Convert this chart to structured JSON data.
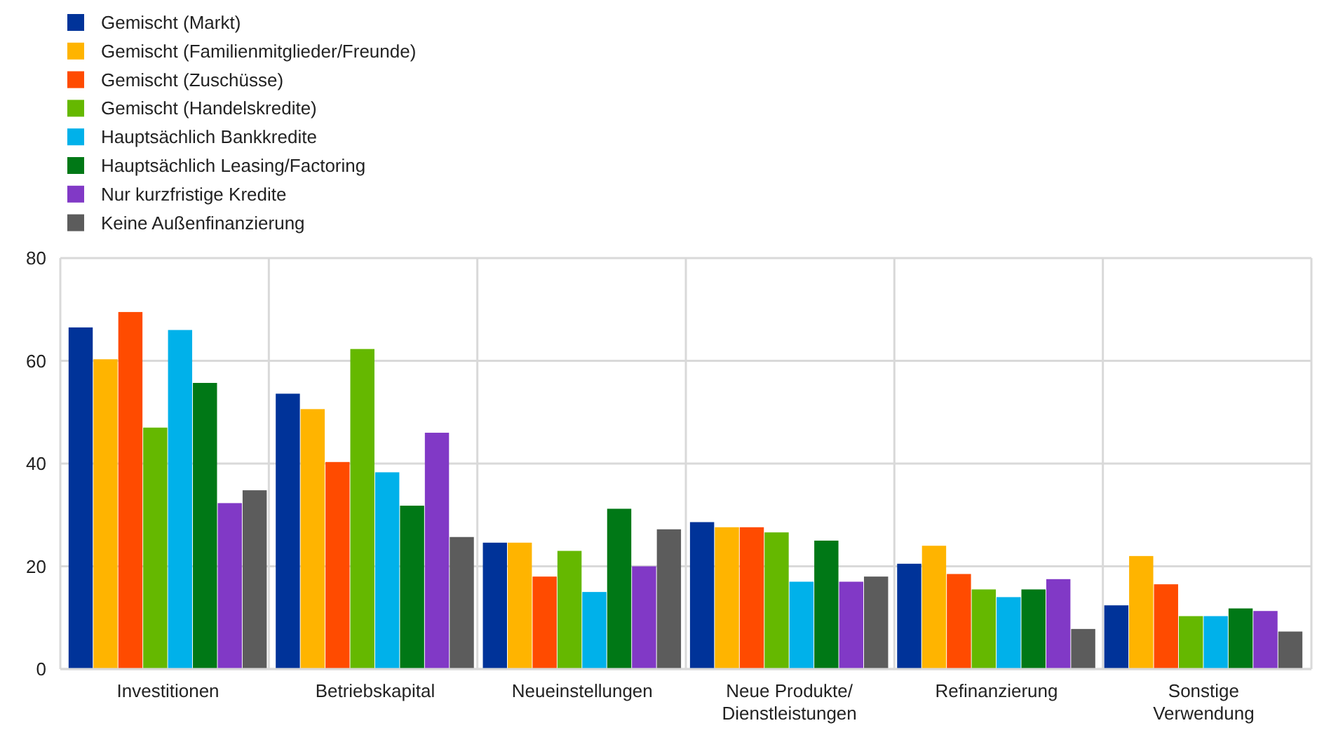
{
  "chart_data": {
    "type": "bar",
    "categories": [
      "Investitionen",
      "Betriebskapital",
      "Neueinstellungen",
      "Neue Produkte/ Dienstleistungen",
      "Refinanzierung",
      "Sonstige Verwendung"
    ],
    "series": [
      {
        "name": "Gemischt (Markt)",
        "color": "#003399",
        "values": [
          66.5,
          53.6,
          24.6,
          28.6,
          20.5,
          12.4
        ]
      },
      {
        "name": "Gemischt (Familienmitglieder/Freunde)",
        "color": "#ffb400",
        "values": [
          60.3,
          50.6,
          24.6,
          27.6,
          24,
          22
        ]
      },
      {
        "name": "Gemischt (Zuschüsse)",
        "color": "#ff4b00",
        "values": [
          69.5,
          40.3,
          18,
          27.6,
          18.5,
          16.5
        ]
      },
      {
        "name": "Gemischt (Handelskredite)",
        "color": "#65b800",
        "values": [
          47,
          62.3,
          23,
          26.6,
          15.5,
          10.3
        ]
      },
      {
        "name": "Hauptsächlich Bankkredite",
        "color": "#00b1ea",
        "values": [
          66,
          38.3,
          15,
          17,
          14,
          10.3
        ]
      },
      {
        "name": "Hauptsächlich Leasing/Factoring",
        "color": "#007816",
        "values": [
          55.7,
          31.8,
          31.2,
          25,
          15.5,
          11.8
        ]
      },
      {
        "name": "Nur kurzfristige Kredite",
        "color": "#8139c6",
        "values": [
          32.3,
          46,
          20,
          17,
          17.5,
          11.3
        ]
      },
      {
        "name": "Keine Außenfinanzierung",
        "color": "#5c5c5c",
        "values": [
          34.8,
          25.7,
          27.2,
          18,
          7.8,
          7.3
        ]
      }
    ],
    "ylim": [
      0,
      80
    ],
    "yticks": [
      0,
      20,
      40,
      60,
      80
    ],
    "grid": true,
    "legend": "top left"
  }
}
